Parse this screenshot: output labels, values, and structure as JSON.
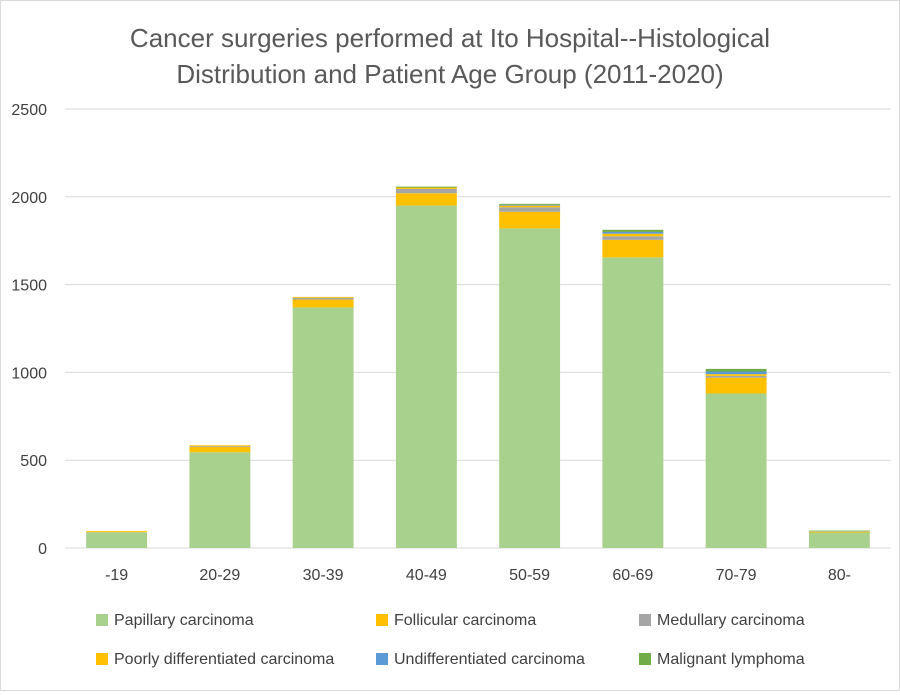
{
  "chart_data": {
    "type": "bar",
    "stacked": true,
    "title_lines": [
      "Cancer surgeries performed at Ito Hospital--Histological",
      "Distribution  and Patient Age Group (2011-2020)"
    ],
    "xlabel": "",
    "ylabel": "",
    "ylim": [
      0,
      2500
    ],
    "yticks": [
      0,
      500,
      1000,
      1500,
      2000,
      2500
    ],
    "grid": true,
    "legend_position": "bottom",
    "categories": [
      "-19",
      "20-29",
      "30-39",
      "40-49",
      "50-59",
      "60-69",
      "70-79",
      "80-"
    ],
    "series": [
      {
        "name": "Papillary carcinoma",
        "color": "#a9d18e",
        "values": [
          90,
          545,
          1370,
          1950,
          1820,
          1655,
          880,
          88
        ]
      },
      {
        "name": "Follicular carcinoma",
        "color": "#ffc000",
        "values": [
          5,
          30,
          45,
          70,
          95,
          100,
          90,
          4
        ]
      },
      {
        "name": "Medullary carcinoma",
        "color": "#a5a5a5",
        "values": [
          0,
          5,
          10,
          25,
          25,
          20,
          10,
          0
        ]
      },
      {
        "name": "Poorly differentiated carcinoma",
        "color": "#ffc000",
        "values": [
          2,
          5,
          5,
          8,
          10,
          15,
          10,
          2
        ]
      },
      {
        "name": "Undifferentiated carcinoma",
        "color": "#5b9bd5",
        "values": [
          0,
          0,
          0,
          0,
          5,
          10,
          15,
          2
        ]
      },
      {
        "name": "Malignant lymphoma",
        "color": "#70ad47",
        "values": [
          0,
          0,
          0,
          5,
          5,
          12,
          15,
          3
        ]
      }
    ]
  }
}
